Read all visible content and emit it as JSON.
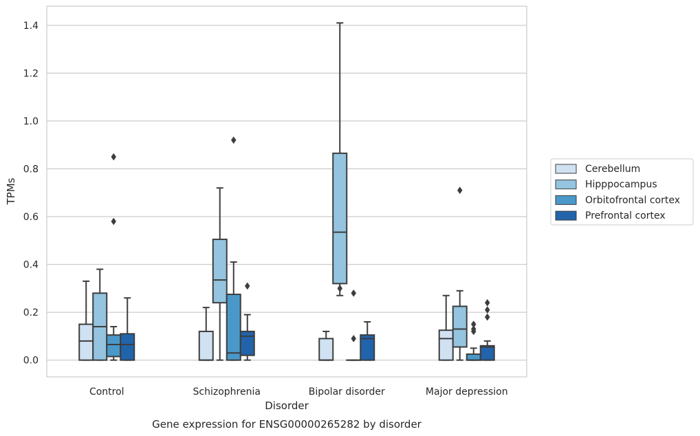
{
  "chart_data": {
    "type": "box",
    "title": "",
    "caption": "Gene expression for ENSG00000265282 by disorder",
    "xlabel": "Disorder",
    "ylabel": "TPMs",
    "ylim": [
      -0.07,
      1.48
    ],
    "yticks": [
      "0.0",
      "0.2",
      "0.4",
      "0.6",
      "0.8",
      "1.0",
      "1.2",
      "1.4"
    ],
    "grid": true,
    "legend_position": "right",
    "categories": [
      "Control",
      "Schizophrenia",
      "Bipolar disorder",
      "Major depression"
    ],
    "series": [
      {
        "name": "Cerebellum",
        "color": "#d0e1f2",
        "boxes": [
          {
            "min": 0.0,
            "q1": 0.0,
            "median": 0.08,
            "q3": 0.15,
            "max": 0.33,
            "outliers": []
          },
          {
            "min": 0.0,
            "q1": 0.0,
            "median": 0.0,
            "q3": 0.12,
            "max": 0.22,
            "outliers": []
          },
          {
            "min": 0.0,
            "q1": 0.0,
            "median": 0.0,
            "q3": 0.09,
            "max": 0.12,
            "outliers": []
          },
          {
            "min": 0.0,
            "q1": 0.0,
            "median": 0.09,
            "q3": 0.125,
            "max": 0.27,
            "outliers": []
          }
        ]
      },
      {
        "name": "Hipppocampus",
        "color": "#94c4df",
        "boxes": [
          {
            "min": 0.0,
            "q1": 0.0,
            "median": 0.14,
            "q3": 0.28,
            "max": 0.38,
            "outliers": []
          },
          {
            "min": 0.0,
            "q1": 0.24,
            "median": 0.335,
            "q3": 0.505,
            "max": 0.72,
            "outliers": []
          },
          {
            "min": 0.27,
            "q1": 0.32,
            "median": 0.535,
            "q3": 0.865,
            "max": 1.41,
            "outliers": [
              0.3
            ]
          },
          {
            "min": 0.0,
            "q1": 0.055,
            "median": 0.13,
            "q3": 0.225,
            "max": 0.29,
            "outliers": [
              0.71
            ]
          }
        ]
      },
      {
        "name": "Orbitofrontal cortex",
        "color": "#4a98c9",
        "boxes": [
          {
            "min": 0.0,
            "q1": 0.015,
            "median": 0.065,
            "q3": 0.105,
            "max": 0.14,
            "outliers": [
              0.58,
              0.85
            ]
          },
          {
            "min": 0.0,
            "q1": 0.0,
            "median": 0.03,
            "q3": 0.275,
            "max": 0.41,
            "outliers": [
              0.92
            ]
          },
          {
            "min": 0.0,
            "q1": 0.0,
            "median": 0.0,
            "q3": 0.0,
            "max": 0.0,
            "outliers": [
              0.09,
              0.28
            ]
          },
          {
            "min": 0.0,
            "q1": 0.0,
            "median": 0.0,
            "q3": 0.025,
            "max": 0.05,
            "outliers": [
              0.12,
              0.13,
              0.15
            ]
          }
        ]
      },
      {
        "name": "Prefrontal cortex",
        "color": "#2164ab",
        "boxes": [
          {
            "min": 0.0,
            "q1": 0.0,
            "median": 0.065,
            "q3": 0.11,
            "max": 0.26,
            "outliers": []
          },
          {
            "min": 0.0,
            "q1": 0.02,
            "median": 0.1,
            "q3": 0.12,
            "max": 0.19,
            "outliers": [
              0.31
            ]
          },
          {
            "min": 0.0,
            "q1": 0.0,
            "median": 0.09,
            "q3": 0.105,
            "max": 0.16,
            "outliers": []
          },
          {
            "min": 0.0,
            "q1": 0.0,
            "median": 0.055,
            "q3": 0.06,
            "max": 0.08,
            "outliers": [
              0.18,
              0.21,
              0.24
            ]
          }
        ]
      }
    ]
  }
}
